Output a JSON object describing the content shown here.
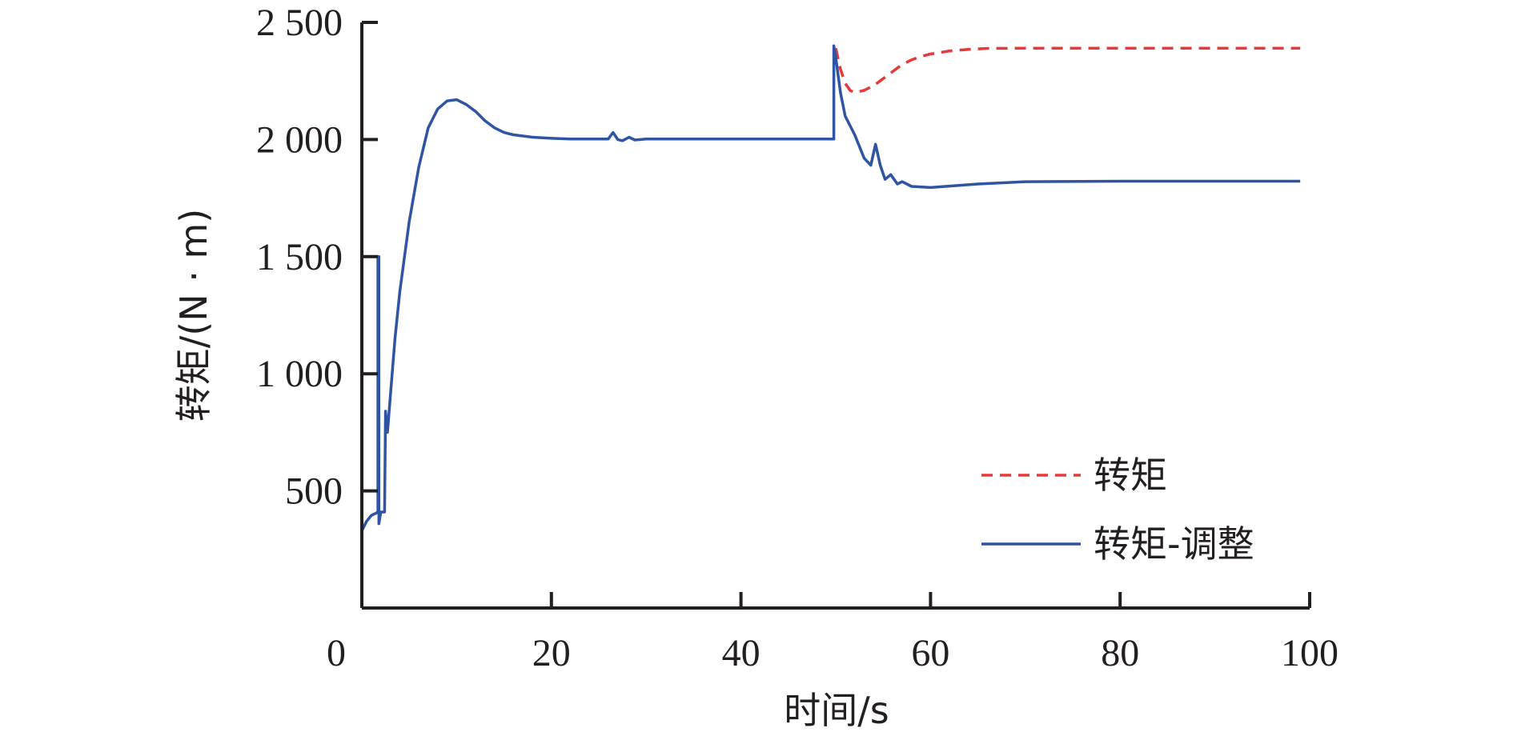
{
  "chart_data": {
    "type": "line",
    "xlabel": "时间/s",
    "ylabel": "转矩/(N · m)",
    "xlim": [
      0,
      100
    ],
    "ylim": [
      0,
      2500
    ],
    "x_ticks": [
      0,
      20,
      40,
      60,
      80,
      100
    ],
    "x_tick_labels": [
      "0",
      "20",
      "40",
      "60",
      "80",
      "100"
    ],
    "y_ticks": [
      500,
      1000,
      1500,
      2000,
      2500
    ],
    "y_tick_labels": [
      "500",
      "1 000",
      "1 500",
      "2 000",
      "2 500"
    ],
    "grid": false,
    "legend_position": "bottom-right",
    "series": [
      {
        "name": "转矩",
        "color": "#e8393a",
        "style": "dashed",
        "points": [
          [
            50,
            2390
          ],
          [
            50.5,
            2300
          ],
          [
            51,
            2240
          ],
          [
            51.5,
            2210
          ],
          [
            52,
            2200
          ],
          [
            53,
            2210
          ],
          [
            54,
            2230
          ],
          [
            55,
            2260
          ],
          [
            56,
            2290
          ],
          [
            57,
            2320
          ],
          [
            58,
            2340
          ],
          [
            59,
            2355
          ],
          [
            60,
            2365
          ],
          [
            62,
            2378
          ],
          [
            64,
            2385
          ],
          [
            66,
            2389
          ],
          [
            70,
            2390
          ],
          [
            80,
            2390
          ],
          [
            90,
            2390
          ],
          [
            99,
            2390
          ]
        ]
      },
      {
        "name": "转矩-调整",
        "color": "#2e54a3",
        "style": "solid",
        "points": [
          [
            0,
            330
          ],
          [
            0.5,
            370
          ],
          [
            1,
            395
          ],
          [
            1.5,
            405
          ],
          [
            1.7,
            410
          ],
          [
            1.7,
            1500
          ],
          [
            1.8,
            1500
          ],
          [
            1.8,
            360
          ],
          [
            2,
            410
          ],
          [
            2.4,
            410
          ],
          [
            2.5,
            840
          ],
          [
            2.7,
            750
          ],
          [
            3,
            900
          ],
          [
            3.5,
            1150
          ],
          [
            4,
            1350
          ],
          [
            5,
            1650
          ],
          [
            6,
            1880
          ],
          [
            7,
            2050
          ],
          [
            8,
            2130
          ],
          [
            9,
            2165
          ],
          [
            10,
            2170
          ],
          [
            11,
            2150
          ],
          [
            12,
            2120
          ],
          [
            13,
            2080
          ],
          [
            14,
            2050
          ],
          [
            15,
            2030
          ],
          [
            16,
            2020
          ],
          [
            18,
            2010
          ],
          [
            20,
            2005
          ],
          [
            22,
            2002
          ],
          [
            26,
            2002
          ],
          [
            26.5,
            2030
          ],
          [
            27,
            2000
          ],
          [
            27.5,
            1995
          ],
          [
            28.2,
            2010
          ],
          [
            28.8,
            1998
          ],
          [
            30,
            2002
          ],
          [
            40,
            2002
          ],
          [
            49.8,
            2002
          ],
          [
            49.8,
            2400
          ],
          [
            50,
            2350
          ],
          [
            50.5,
            2200
          ],
          [
            51,
            2100
          ],
          [
            52,
            2020
          ],
          [
            53,
            1920
          ],
          [
            53.7,
            1890
          ],
          [
            54.2,
            1980
          ],
          [
            54.7,
            1890
          ],
          [
            55.2,
            1830
          ],
          [
            55.8,
            1850
          ],
          [
            56.5,
            1810
          ],
          [
            57,
            1820
          ],
          [
            58,
            1800
          ],
          [
            60,
            1795
          ],
          [
            65,
            1810
          ],
          [
            70,
            1820
          ],
          [
            80,
            1822
          ],
          [
            90,
            1822
          ],
          [
            99,
            1822
          ]
        ]
      }
    ]
  }
}
